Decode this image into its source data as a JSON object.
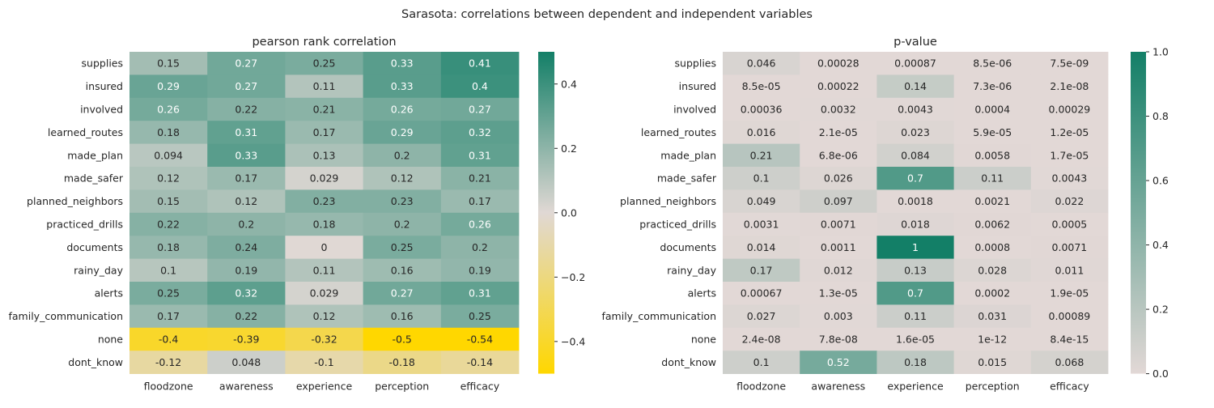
{
  "figure": {
    "suptitle": "Sarasota: correlations between dependent and independent variables"
  },
  "chart_data": [
    {
      "type": "heatmap",
      "title": "pearson rank correlation",
      "x_categories": [
        "floodzone",
        "awareness",
        "experience",
        "perception",
        "efficacy"
      ],
      "y_categories": [
        "supplies",
        "insured",
        "involved",
        "learned_routes",
        "made_plan",
        "made_safer",
        "planned_neighbors",
        "practiced_drills",
        "documents",
        "rainy_day",
        "alerts",
        "family_communication",
        "none",
        "dont_know"
      ],
      "values": [
        [
          0.15,
          0.27,
          0.25,
          0.33,
          0.41
        ],
        [
          0.29,
          0.27,
          0.11,
          0.33,
          0.4
        ],
        [
          0.26,
          0.22,
          0.21,
          0.26,
          0.27
        ],
        [
          0.18,
          0.31,
          0.17,
          0.29,
          0.32
        ],
        [
          0.094,
          0.33,
          0.13,
          0.2,
          0.31
        ],
        [
          0.12,
          0.17,
          0.029,
          0.12,
          0.21
        ],
        [
          0.15,
          0.12,
          0.23,
          0.23,
          0.17
        ],
        [
          0.22,
          0.2,
          0.18,
          0.2,
          0.26
        ],
        [
          0.18,
          0.24,
          0,
          0.25,
          0.2
        ],
        [
          0.1,
          0.19,
          0.11,
          0.16,
          0.19
        ],
        [
          0.25,
          0.32,
          0.029,
          0.27,
          0.31
        ],
        [
          0.17,
          0.22,
          0.12,
          0.16,
          0.25
        ],
        [
          -0.4,
          -0.39,
          -0.32,
          -0.5,
          -0.54
        ],
        [
          -0.12,
          0.048,
          -0.1,
          -0.18,
          -0.14
        ]
      ],
      "cell_labels": [
        [
          "0.15",
          "0.27",
          "0.25",
          "0.33",
          "0.41"
        ],
        [
          "0.29",
          "0.27",
          "0.11",
          "0.33",
          "0.4"
        ],
        [
          "0.26",
          "0.22",
          "0.21",
          "0.26",
          "0.27"
        ],
        [
          "0.18",
          "0.31",
          "0.17",
          "0.29",
          "0.32"
        ],
        [
          "0.094",
          "0.33",
          "0.13",
          "0.2",
          "0.31"
        ],
        [
          "0.12",
          "0.17",
          "0.029",
          "0.12",
          "0.21"
        ],
        [
          "0.15",
          "0.12",
          "0.23",
          "0.23",
          "0.17"
        ],
        [
          "0.22",
          "0.2",
          "0.18",
          "0.2",
          "0.26"
        ],
        [
          "0.18",
          "0.24",
          "0",
          "0.25",
          "0.2"
        ],
        [
          "0.1",
          "0.19",
          "0.11",
          "0.16",
          "0.19"
        ],
        [
          "0.25",
          "0.32",
          "0.029",
          "0.27",
          "0.31"
        ],
        [
          "0.17",
          "0.22",
          "0.12",
          "0.16",
          "0.25"
        ],
        [
          "-0.4",
          "-0.39",
          "-0.32",
          "-0.5",
          "-0.54"
        ],
        [
          "-0.12",
          "0.048",
          "-0.1",
          "-0.18",
          "-0.14"
        ]
      ],
      "colorbar": {
        "vmin": -0.5,
        "vmax": 0.5,
        "ticks": [
          -0.4,
          -0.2,
          0.0,
          0.2,
          0.4
        ],
        "tick_labels": [
          "−0.4",
          "−0.2",
          "0.0",
          "0.2",
          "0.4"
        ],
        "stops": [
          {
            "at": 0.0,
            "color": "#ffd700"
          },
          {
            "at": 0.5,
            "color": "#e0d8d4"
          },
          {
            "at": 1.0,
            "color": "#137f67"
          }
        ]
      }
    },
    {
      "type": "heatmap",
      "title": "p-value",
      "x_categories": [
        "floodzone",
        "awareness",
        "experience",
        "perception",
        "efficacy"
      ],
      "y_categories": [
        "supplies",
        "insured",
        "involved",
        "learned_routes",
        "made_plan",
        "made_safer",
        "planned_neighbors",
        "practiced_drills",
        "documents",
        "rainy_day",
        "alerts",
        "family_communication",
        "none",
        "dont_know"
      ],
      "values": [
        [
          0.046,
          0.00028,
          0.00087,
          8.5e-06,
          7.5e-09
        ],
        [
          8.5e-05,
          0.00022,
          0.14,
          7.3e-06,
          2.1e-08
        ],
        [
          0.00036,
          0.0032,
          0.0043,
          0.0004,
          0.00029
        ],
        [
          0.016,
          2.1e-05,
          0.023,
          5.9e-05,
          1.2e-05
        ],
        [
          0.21,
          6.8e-06,
          0.084,
          0.0058,
          1.7e-05
        ],
        [
          0.1,
          0.026,
          0.7,
          0.11,
          0.0043
        ],
        [
          0.049,
          0.097,
          0.0018,
          0.0021,
          0.022
        ],
        [
          0.0031,
          0.0071,
          0.018,
          0.0062,
          0.0005
        ],
        [
          0.014,
          0.0011,
          1,
          0.0008,
          0.0071
        ],
        [
          0.17,
          0.012,
          0.13,
          0.028,
          0.011
        ],
        [
          0.00067,
          1.3e-05,
          0.7,
          0.0002,
          1.9e-05
        ],
        [
          0.027,
          0.003,
          0.11,
          0.031,
          0.00089
        ],
        [
          2.4e-08,
          7.8e-08,
          1.6e-05,
          1e-12,
          8.4e-15
        ],
        [
          0.1,
          0.52,
          0.18,
          0.015,
          0.068
        ]
      ],
      "cell_labels": [
        [
          "0.046",
          "0.00028",
          "0.00087",
          "8.5e-06",
          "7.5e-09"
        ],
        [
          "8.5e-05",
          "0.00022",
          "0.14",
          "7.3e-06",
          "2.1e-08"
        ],
        [
          "0.00036",
          "0.0032",
          "0.0043",
          "0.0004",
          "0.00029"
        ],
        [
          "0.016",
          "2.1e-05",
          "0.023",
          "5.9e-05",
          "1.2e-05"
        ],
        [
          "0.21",
          "6.8e-06",
          "0.084",
          "0.0058",
          "1.7e-05"
        ],
        [
          "0.1",
          "0.026",
          "0.7",
          "0.11",
          "0.0043"
        ],
        [
          "0.049",
          "0.097",
          "0.0018",
          "0.0021",
          "0.022"
        ],
        [
          "0.0031",
          "0.0071",
          "0.018",
          "0.0062",
          "0.0005"
        ],
        [
          "0.014",
          "0.0011",
          "1",
          "0.0008",
          "0.0071"
        ],
        [
          "0.17",
          "0.012",
          "0.13",
          "0.028",
          "0.011"
        ],
        [
          "0.00067",
          "1.3e-05",
          "0.7",
          "0.0002",
          "1.9e-05"
        ],
        [
          "0.027",
          "0.003",
          "0.11",
          "0.031",
          "0.00089"
        ],
        [
          "2.4e-08",
          "7.8e-08",
          "1.6e-05",
          "1e-12",
          "8.4e-15"
        ],
        [
          "0.1",
          "0.52",
          "0.18",
          "0.015",
          "0.068"
        ]
      ],
      "colorbar": {
        "vmin": 0.0,
        "vmax": 1.0,
        "ticks": [
          0.0,
          0.2,
          0.4,
          0.6,
          0.8,
          1.0
        ],
        "tick_labels": [
          "0.0",
          "0.2",
          "0.4",
          "0.6",
          "0.8",
          "1.0"
        ],
        "stops": [
          {
            "at": 0.0,
            "color": "#e2d8d6"
          },
          {
            "at": 1.0,
            "color": "#137f67"
          }
        ]
      }
    }
  ]
}
